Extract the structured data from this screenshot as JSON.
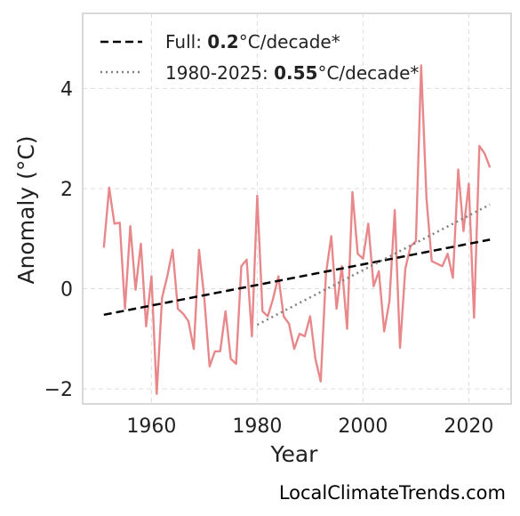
{
  "chart_data": {
    "type": "line",
    "xlabel": "Year",
    "ylabel": "Anomaly (°C)",
    "xlim": [
      1947,
      2028
    ],
    "ylim": [
      -2.3,
      5.5
    ],
    "xticks": [
      1960,
      1980,
      2000,
      2020
    ],
    "yticks": [
      -2,
      0,
      2,
      4
    ],
    "ytick_labels": [
      "−2",
      "0",
      "2",
      "4"
    ],
    "grid": true,
    "legend_position": "top-left",
    "colors": {
      "series": "#e8888a",
      "full_trend": "#000000",
      "recent_trend": "#808080"
    },
    "series": [
      {
        "x": [
          1951,
          1952,
          1953,
          1954,
          1955,
          1956,
          1957,
          1958,
          1959,
          1960,
          1961,
          1962,
          1963,
          1964,
          1965,
          1966,
          1967,
          1968,
          1969,
          1970,
          1971,
          1972,
          1973,
          1974,
          1975,
          1976,
          1977,
          1978,
          1979,
          1980,
          1981,
          1982,
          1983,
          1984,
          1985,
          1986,
          1987,
          1988,
          1989,
          1990,
          1991,
          1992,
          1993,
          1994,
          1995,
          1996,
          1997,
          1998,
          1999,
          2000,
          2001,
          2002,
          2003,
          2004,
          2005,
          2006,
          2007,
          2008,
          2009,
          2010,
          2011,
          2012,
          2013,
          2014,
          2015,
          2016,
          2017,
          2018,
          2019,
          2020,
          2021,
          2022,
          2023,
          2024
        ],
        "values": [
          0.82,
          2.02,
          1.3,
          1.32,
          -0.4,
          1.25,
          -0.02,
          0.9,
          -0.75,
          0.25,
          -2.1,
          -0.18,
          0.25,
          0.78,
          -0.4,
          -0.5,
          -0.65,
          -1.2,
          0.78,
          -0.2,
          -1.55,
          -1.25,
          -1.25,
          -0.45,
          -1.4,
          -1.5,
          0.45,
          0.58,
          -0.95,
          1.86,
          -0.45,
          -0.55,
          -0.2,
          0.25,
          -0.55,
          -0.7,
          -1.2,
          -0.9,
          -0.95,
          -0.55,
          -1.4,
          -1.85,
          0.3,
          1.05,
          -0.4,
          0.45,
          -0.8,
          1.93,
          0.7,
          0.6,
          1.3,
          0.05,
          0.35,
          -0.85,
          -0.25,
          1.57,
          -1.18,
          0.4,
          0.85,
          0.95,
          4.46,
          1.8,
          0.55,
          0.5,
          0.45,
          0.7,
          0.22,
          2.38,
          1.15,
          2.1,
          -0.58,
          2.85,
          2.7,
          2.42
        ]
      }
    ],
    "trend_lines": [
      {
        "name": "Full",
        "rate": "0.2",
        "x": [
          1951,
          2024
        ],
        "y": [
          -0.52,
          0.98
        ]
      },
      {
        "name": "1980-2025",
        "rate": "0.55",
        "x": [
          1980,
          2024
        ],
        "y": [
          -0.72,
          1.68
        ]
      }
    ],
    "legend": [
      {
        "prefix": "Full: ",
        "bold": "0.2",
        "suffix": "°C/decade*"
      },
      {
        "prefix": "1980-2025: ",
        "bold": "0.55",
        "suffix": "°C/decade*"
      }
    ]
  },
  "watermark": "LocalClimateTrends.com"
}
